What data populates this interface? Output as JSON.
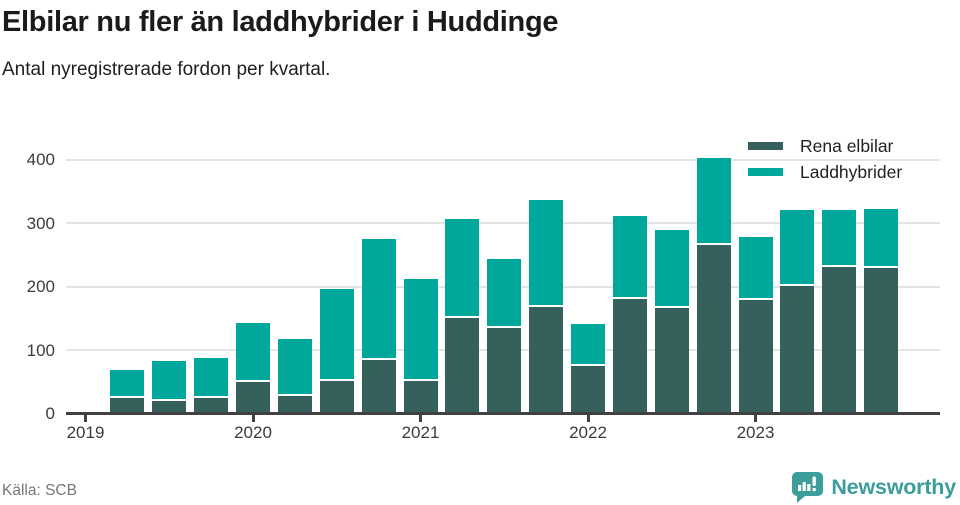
{
  "title": "Elbilar nu fler än laddhybrider i Huddinge",
  "subtitle": "Antal nyregistrerade fordon per kvartal.",
  "source": "Källa: SCB",
  "brand": {
    "name": "Newsworthy",
    "color": "#3b9e9b",
    "icon": "newsworthy-speech-bubble-chart-icon"
  },
  "colors": {
    "rena_elbilar": "#36605b",
    "laddhybrider": "#00a79b",
    "axis": "#414141",
    "grid": "#e4e4e4",
    "title_text": "#1b1b1b",
    "tick_text": "#3c3c3c",
    "muted_text": "#777777"
  },
  "legend": {
    "items": [
      {
        "label": "Rena elbilar",
        "color": "#36605b"
      },
      {
        "label": "Laddhybrider",
        "color": "#00a79b"
      }
    ],
    "position": "top-right"
  },
  "chart_data": {
    "type": "bar",
    "stacked": true,
    "title": "Elbilar nu fler än laddhybrider i Huddinge",
    "subtitle": "Antal nyregistrerade fordon per kvartal.",
    "categories": [
      "2019 Q1",
      "2019 Q2",
      "2019 Q3",
      "2019 Q4",
      "2020 Q1",
      "2020 Q2",
      "2020 Q3",
      "2020 Q4",
      "2021 Q1",
      "2021 Q2",
      "2021 Q3",
      "2021 Q4",
      "2022 Q1",
      "2022 Q2",
      "2022 Q3",
      "2022 Q4",
      "2023 Q1",
      "2023 Q2",
      "2023 Q3",
      "2023 Q4"
    ],
    "x_tick_labels": [
      "2019",
      "2020",
      "2021",
      "2022",
      "2023"
    ],
    "series": [
      {
        "name": "Rena elbilar",
        "color": "#36605b",
        "values": [
          0,
          25,
          20,
          25,
          50,
          28,
          52,
          84,
          52,
          151,
          135,
          168,
          75,
          181,
          166,
          265,
          179,
          201,
          231,
          230
        ]
      },
      {
        "name": "Laddhybrider",
        "color": "#00a79b",
        "values": [
          0,
          43,
          62,
          63,
          93,
          90,
          145,
          191,
          160,
          155,
          109,
          169,
          66,
          131,
          123,
          138,
          99,
          119,
          89,
          93
        ]
      }
    ],
    "totals": [
      0,
      68,
      82,
      88,
      143,
      118,
      197,
      275,
      212,
      306,
      244,
      337,
      141,
      312,
      289,
      403,
      278,
      320,
      320,
      323
    ],
    "ylim": [
      0,
      400
    ],
    "yticks": [
      0,
      100,
      200,
      300,
      400
    ],
    "grid": "horizontal",
    "legend_position": "top-right",
    "source_label": "Källa: SCB"
  }
}
